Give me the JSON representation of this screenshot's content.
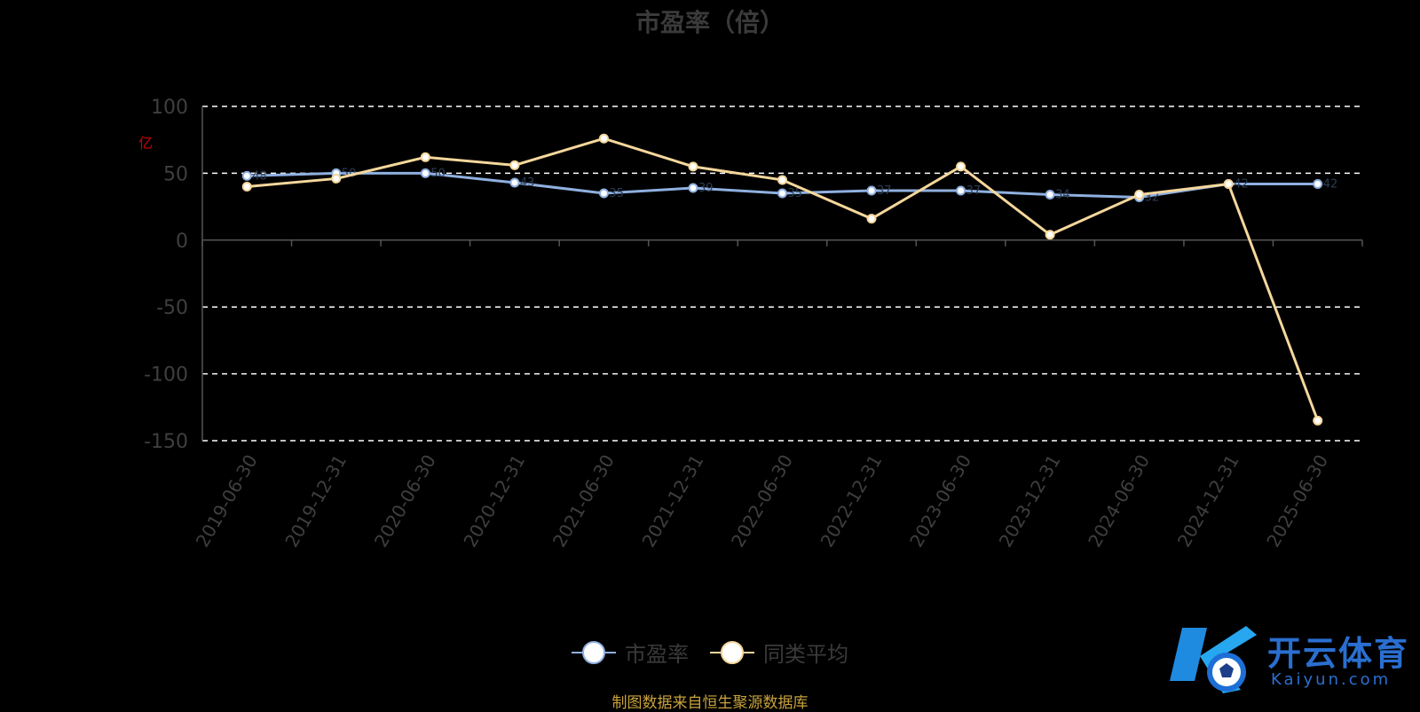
{
  "chart_data": {
    "type": "line",
    "title": "市盈率（倍）",
    "categories": [
      "2019-06-30",
      "2019-12-31",
      "2020-06-30",
      "2020-12-31",
      "2021-06-30",
      "2021-12-31",
      "2022-06-30",
      "2022-12-31",
      "2023-06-30",
      "2023-12-31",
      "2024-06-30",
      "2024-12-31",
      "2025-06-30"
    ],
    "series": [
      {
        "name": "市盈率",
        "color": "#8fb0e0",
        "values": [
          48,
          50,
          50,
          43,
          35,
          39,
          35,
          37,
          37,
          34,
          32,
          42,
          42
        ]
      },
      {
        "name": "同类平均",
        "color": "#f5d79c",
        "values": [
          40,
          46,
          62,
          56,
          76,
          55,
          45,
          16,
          55,
          4,
          34,
          42,
          -135
        ]
      }
    ],
    "ylim": [
      -150,
      100
    ],
    "yticks": [
      -150,
      -100,
      -50,
      0,
      50,
      100
    ],
    "grid": true,
    "legend_position": "bottom-center"
  },
  "side_mark": "亿",
  "source_note": "制图数据来自恒生聚源数据库",
  "brand": {
    "name": "开云体育",
    "url": "Kaiyun.com",
    "logo_icon": "k-soccer-ball-logo"
  }
}
